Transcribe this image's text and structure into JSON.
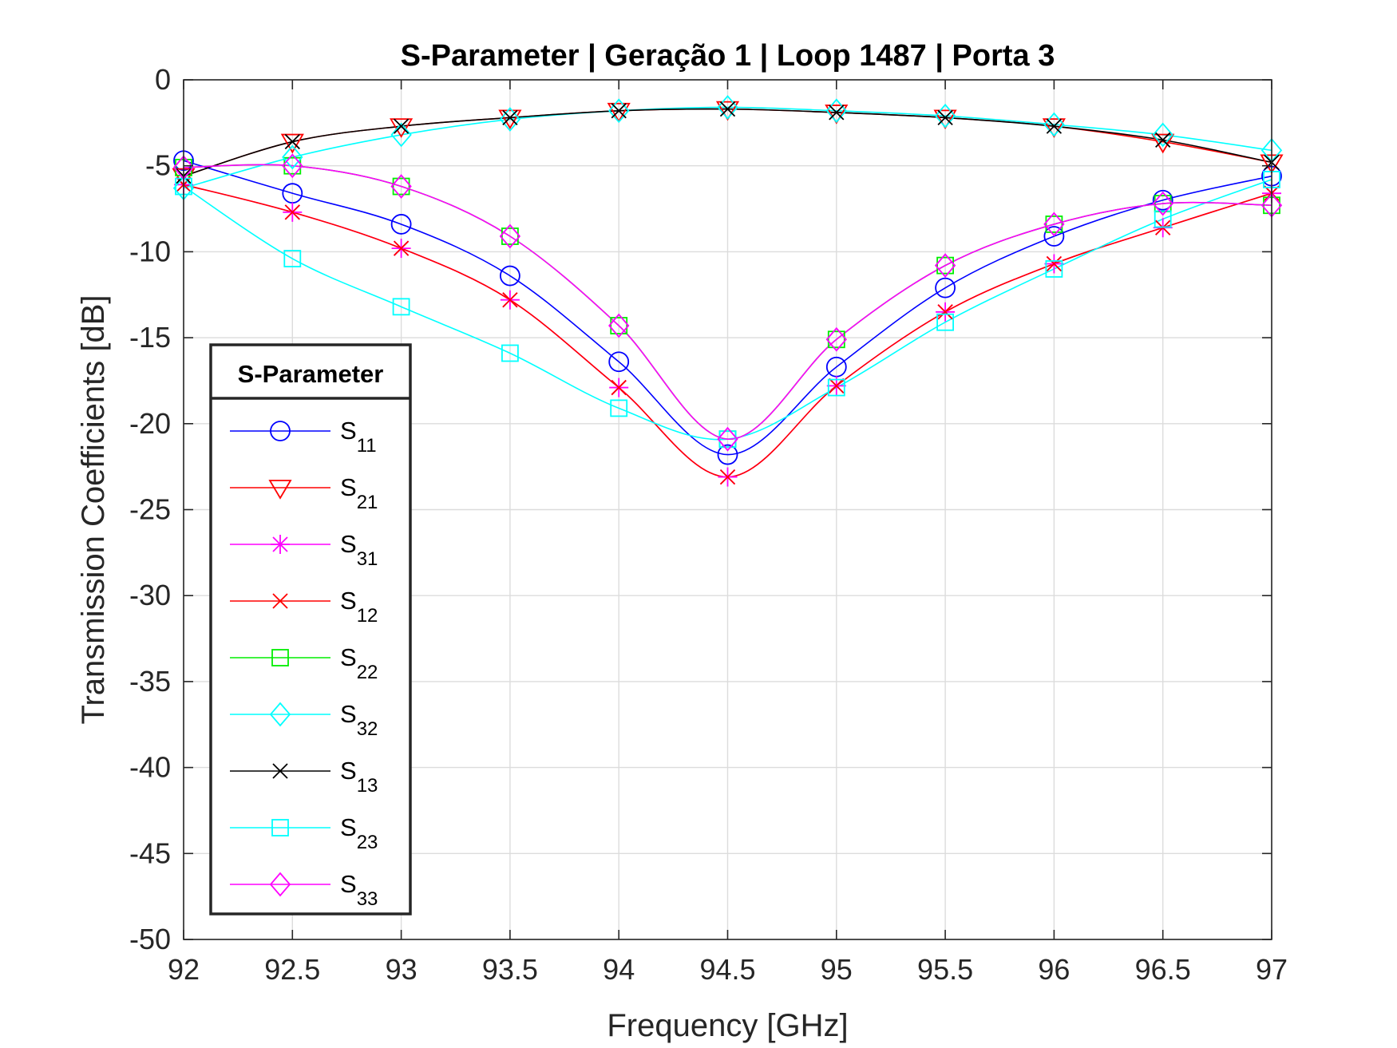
{
  "chart_data": {
    "type": "line",
    "title": "S-Parameter  |  Geração 1  |  Loop 1487  |  Porta 3",
    "xlabel": "Frequency [GHz]",
    "ylabel": "Transmission Coefficients [dB]",
    "xlim": [
      92,
      97
    ],
    "ylim": [
      -50,
      0
    ],
    "xticks": [
      "92",
      "92.5",
      "93",
      "93.5",
      "94",
      "94.5",
      "95",
      "95.5",
      "96",
      "96.5",
      "97"
    ],
    "yticks": [
      "0",
      "-5",
      "-10",
      "-15",
      "-20",
      "-25",
      "-30",
      "-35",
      "-40",
      "-45",
      "-50"
    ],
    "grid": true,
    "legend_title": "S-Parameter",
    "legend_placement": "left",
    "x": [
      92,
      92.5,
      93,
      93.5,
      94,
      94.5,
      95,
      95.5,
      96,
      96.5,
      97
    ],
    "series": [
      {
        "name": "S11",
        "base": "S",
        "sub": "11",
        "color": "#0000ff",
        "marker": "circle",
        "values": [
          -4.7,
          -6.6,
          -8.4,
          -11.4,
          -16.4,
          -21.8,
          -16.7,
          -12.1,
          -9.1,
          -7.0,
          -5.6
        ]
      },
      {
        "name": "S21",
        "base": "S",
        "sub": "21",
        "color": "#ff0000",
        "marker": "triangle-down",
        "values": [
          -5.6,
          -3.6,
          -2.7,
          -2.2,
          -1.8,
          -1.7,
          -1.9,
          -2.2,
          -2.7,
          -3.6,
          -4.8
        ]
      },
      {
        "name": "S31",
        "base": "S",
        "sub": "31",
        "color": "#ff00ff",
        "marker": "asterisk",
        "values": [
          -6.1,
          -7.7,
          -9.8,
          -12.8,
          -17.9,
          -23.1,
          -17.8,
          -13.5,
          -10.7,
          -8.6,
          -6.6
        ]
      },
      {
        "name": "S12",
        "base": "S",
        "sub": "12",
        "color": "#ff0000",
        "marker": "x",
        "values": [
          -6.1,
          -7.7,
          -9.8,
          -12.8,
          -17.9,
          -23.1,
          -17.8,
          -13.5,
          -10.7,
          -8.6,
          -6.6
        ]
      },
      {
        "name": "S22",
        "base": "S",
        "sub": "22",
        "color": "#00ee00",
        "marker": "square",
        "values": [
          -5.1,
          -5.0,
          -6.2,
          -9.1,
          -14.3,
          -20.9,
          -15.1,
          -10.8,
          -8.4,
          -7.2,
          -7.3
        ]
      },
      {
        "name": "S32",
        "base": "S",
        "sub": "32",
        "color": "#00ffff",
        "marker": "diamond",
        "values": [
          -6.3,
          -4.5,
          -3.2,
          -2.3,
          -1.8,
          -1.6,
          -1.8,
          -2.1,
          -2.6,
          -3.2,
          -4.1
        ]
      },
      {
        "name": "S13",
        "base": "S",
        "sub": "13",
        "color": "#000000",
        "marker": "x",
        "values": [
          -5.6,
          -3.6,
          -2.7,
          -2.2,
          -1.8,
          -1.7,
          -1.9,
          -2.2,
          -2.7,
          -3.5,
          -4.8
        ]
      },
      {
        "name": "S23",
        "base": "S",
        "sub": "23",
        "color": "#00ffff",
        "marker": "square",
        "values": [
          -6.2,
          -10.4,
          -13.2,
          -15.9,
          -19.1,
          -20.9,
          -17.9,
          -14.1,
          -11.0,
          -8.1,
          -5.8
        ]
      },
      {
        "name": "S33",
        "base": "S",
        "sub": "33",
        "color": "#ff00ff",
        "marker": "diamond",
        "values": [
          -5.1,
          -5.0,
          -6.2,
          -9.1,
          -14.3,
          -20.9,
          -15.1,
          -10.8,
          -8.4,
          -7.2,
          -7.3
        ]
      }
    ]
  }
}
